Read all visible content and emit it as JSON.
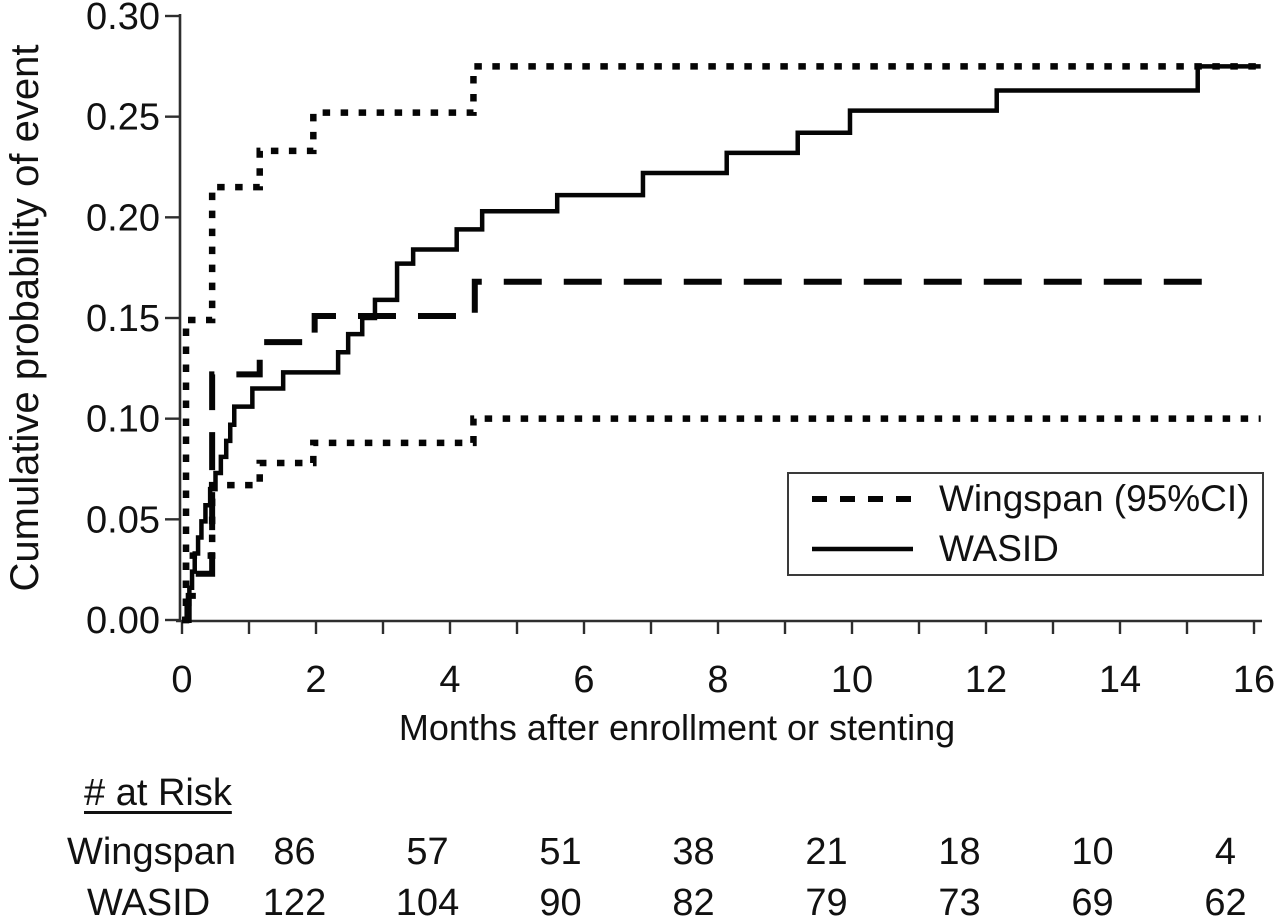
{
  "chart_data": {
    "type": "line",
    "subtype": "kaplan-meier-step",
    "title": "",
    "xlabel": "Months after enrollment or stenting",
    "ylabel": "Cumulative probability of event",
    "xlim": [
      0,
      16
    ],
    "ylim": [
      0.0,
      0.3
    ],
    "grid": false,
    "x_major_ticks": [
      0,
      2,
      4,
      6,
      8,
      10,
      12,
      14,
      16
    ],
    "x_tick_labels": [
      "0",
      "2",
      "4",
      "6",
      "8",
      "10",
      "12",
      "14",
      "16"
    ],
    "x_minor_tick_step": 1,
    "y_ticks": [
      0.0,
      0.05,
      0.1,
      0.15,
      0.2,
      0.25,
      0.3
    ],
    "y_tick_labels": [
      "0.00",
      "0.05",
      "0.10",
      "0.15",
      "0.20",
      "0.25",
      "0.30"
    ],
    "step_interpolation": true,
    "series": [
      {
        "name": "Wingspan upper 95% CI",
        "style": "dotted",
        "points": [
          [
            0,
            0
          ],
          [
            0.06,
            0.149
          ],
          [
            0.45,
            0.215
          ],
          [
            1.16,
            0.233
          ],
          [
            1.96,
            0.252
          ],
          [
            4.35,
            0.275
          ],
          [
            16.1,
            0.275
          ]
        ]
      },
      {
        "name": "Wingspan lower 95% CI",
        "style": "dotted",
        "points": [
          [
            0,
            0
          ],
          [
            0.06,
            0.032
          ],
          [
            0.45,
            0.067
          ],
          [
            1.16,
            0.078
          ],
          [
            1.96,
            0.088
          ],
          [
            4.35,
            0.1
          ],
          [
            16.1,
            0.1
          ]
        ]
      },
      {
        "name": "Wingspan estimate",
        "style": "dashed",
        "points": [
          [
            0,
            0
          ],
          [
            0.1,
            0.012
          ],
          [
            0.25,
            0.023
          ],
          [
            0.45,
            0.122
          ],
          [
            1.16,
            0.138
          ],
          [
            1.98,
            0.151
          ],
          [
            4.37,
            0.168
          ],
          [
            15.5,
            0.168
          ]
        ]
      },
      {
        "name": "WASID",
        "style": "solid",
        "points": [
          [
            0,
            0
          ],
          [
            0.07,
            0.008
          ],
          [
            0.11,
            0.016
          ],
          [
            0.15,
            0.024
          ],
          [
            0.19,
            0.033
          ],
          [
            0.24,
            0.041
          ],
          [
            0.29,
            0.049
          ],
          [
            0.35,
            0.057
          ],
          [
            0.42,
            0.065
          ],
          [
            0.5,
            0.073
          ],
          [
            0.58,
            0.081
          ],
          [
            0.66,
            0.089
          ],
          [
            0.72,
            0.097
          ],
          [
            0.78,
            0.106
          ],
          [
            1.05,
            0.115
          ],
          [
            1.51,
            0.123
          ],
          [
            2.33,
            0.133
          ],
          [
            2.48,
            0.142
          ],
          [
            2.69,
            0.15
          ],
          [
            2.88,
            0.159
          ],
          [
            3.21,
            0.177
          ],
          [
            3.45,
            0.184
          ],
          [
            4.1,
            0.194
          ],
          [
            4.48,
            0.203
          ],
          [
            5.6,
            0.211
          ],
          [
            6.88,
            0.222
          ],
          [
            8.13,
            0.232
          ],
          [
            9.19,
            0.242
          ],
          [
            9.97,
            0.253
          ],
          [
            12.16,
            0.263
          ],
          [
            15.16,
            0.275
          ],
          [
            16.1,
            0.275
          ]
        ]
      }
    ],
    "legend": {
      "position": "inside-right",
      "entries": [
        {
          "label": "Wingspan (95%CI)",
          "style": "dashed"
        },
        {
          "label": "WASID",
          "style": "solid"
        }
      ]
    }
  },
  "risk_table": {
    "heading": "# at Risk",
    "rows": [
      {
        "label": "Wingspan",
        "counts": [
          "86",
          "57",
          "51",
          "38",
          "21",
          "18",
          "10",
          "4"
        ]
      },
      {
        "label": "WASID",
        "counts": [
          "122",
          "104",
          "90",
          "82",
          "79",
          "73",
          "69",
          "62"
        ]
      }
    ]
  },
  "colors": {
    "line": "#050505",
    "axis": "#2e2e2e",
    "text": "#111111",
    "background": "#ffffff"
  }
}
